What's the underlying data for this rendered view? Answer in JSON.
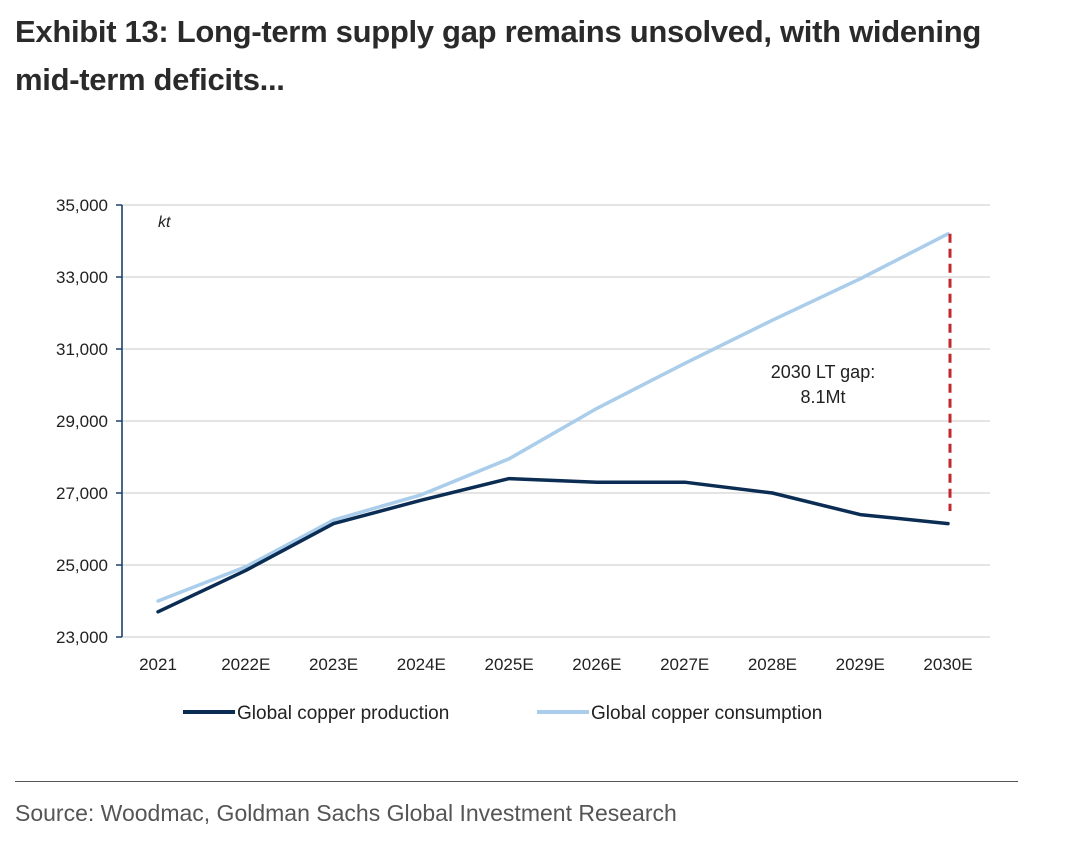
{
  "title": "Exhibit 13: Long-term supply gap remains unsolved, with widening mid-term deficits...",
  "source": "Source: Woodmac, Goldman Sachs Global Investment Research",
  "colors": {
    "production": "#0b2d54",
    "consumption": "#a9cdea",
    "gap_line": "#c0282d",
    "axis": "#1c3f6b",
    "grid": "#d3d3d3"
  },
  "chart_data": {
    "type": "line",
    "unit_label": "kt",
    "categories": [
      "2021",
      "2022E",
      "2023E",
      "2024E",
      "2025E",
      "2026E",
      "2027E",
      "2028E",
      "2029E",
      "2030E"
    ],
    "ylim": [
      23000,
      35000
    ],
    "yticks": [
      23000,
      25000,
      27000,
      29000,
      31000,
      33000,
      35000
    ],
    "ytick_labels": [
      "23,000",
      "25,000",
      "27,000",
      "29,000",
      "31,000",
      "33,000",
      "35,000"
    ],
    "grid": true,
    "legend_position": "bottom",
    "series": [
      {
        "name": "Global copper production",
        "values": [
          23700,
          24850,
          26150,
          26800,
          27400,
          27300,
          27300,
          27000,
          26400,
          26150
        ]
      },
      {
        "name": "Global copper consumption",
        "values": [
          24000,
          24950,
          26250,
          26950,
          27950,
          29350,
          30600,
          31800,
          32950,
          34200
        ]
      }
    ],
    "annotation": {
      "line1": "2030 LT gap:",
      "line2": "8.1Mt",
      "at_category": "2030E",
      "from": 26500,
      "to": 34200
    }
  }
}
